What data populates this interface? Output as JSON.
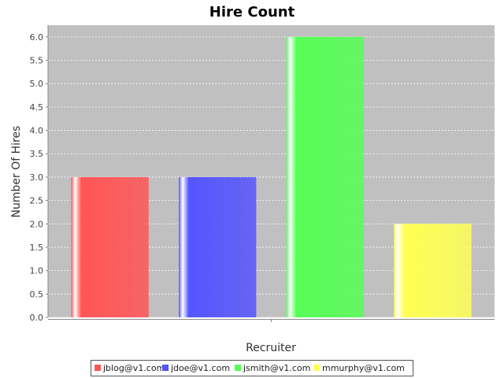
{
  "chart_data": {
    "type": "bar",
    "title": "Hire Count",
    "xlabel": "Recruiter",
    "ylabel": "Number Of Hires",
    "ylim": [
      0,
      6.25
    ],
    "yticks": [
      "0.0",
      "0.5",
      "1.0",
      "1.5",
      "2.0",
      "2.5",
      "3.0",
      "3.5",
      "4.0",
      "4.5",
      "5.0",
      "5.5",
      "6.0"
    ],
    "grid": true,
    "legend_position": "bottom",
    "plot_background": "#c0c0c0",
    "series": [
      {
        "name": "jblog@v1.com",
        "value": 3,
        "color": "#ff5555"
      },
      {
        "name": "jdoe@v1.com",
        "value": 3,
        "color": "#5555ff"
      },
      {
        "name": "jsmith@v1.com",
        "value": 6,
        "color": "#55ff55"
      },
      {
        "name": "mmurphy@v1.com",
        "value": 2,
        "color": "#ffff55"
      }
    ]
  }
}
